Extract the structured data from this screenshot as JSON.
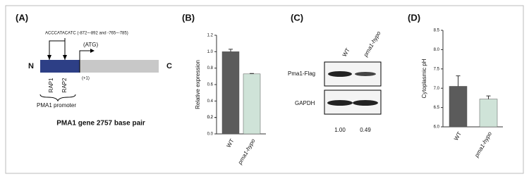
{
  "diagram": {
    "label": "(A)",
    "sequence": "ACCCATACATC (-872~-892 and -765~-785)",
    "start": "(ATG)",
    "n_term": "N",
    "c_term": "C",
    "plus_one": "(+1)",
    "sites": [
      "RAP1",
      "RAP2"
    ],
    "promoter": "PMA1 promoter",
    "caption": "PMA1 gene 2757 base pair"
  },
  "blot": {
    "label": "(C)",
    "lanes": [
      "WT",
      "pma1-hypo"
    ],
    "rows": [
      "Pma1-Flag",
      "GAPDH"
    ],
    "quantities": [
      "1.00",
      "0.49"
    ]
  },
  "chart_data": [
    {
      "type": "bar",
      "label": "(B)",
      "y_label": "Relative expression",
      "categories": [
        "WT",
        "pma1-hypo"
      ],
      "values": [
        1.0,
        0.73
      ],
      "errors": [
        0.03,
        0.005
      ],
      "colors": [
        "#5b5b5b",
        "#cfe3d8"
      ],
      "ylim": [
        0,
        1.2
      ],
      "yticks": [
        {
          "value": 0,
          "label": "0.0"
        },
        0.2,
        0.4,
        0.6,
        0.8,
        {
          "value": 1,
          "label": "1.0"
        },
        0.2,
        1.2
      ]
    },
    {
      "type": "bar",
      "label": "(D)",
      "y_label": "Cytoplasmic pH",
      "categories": [
        "WT",
        "pma1-hypo"
      ],
      "values": [
        7.05,
        6.72
      ],
      "errors": [
        0.27,
        0.08
      ],
      "colors": [
        "#5b5b5b",
        "#cfe3d8"
      ],
      "ylim": [
        6,
        8.5
      ],
      "yticks": [
        {
          "value": 6,
          "label": "6.0"
        },
        6.5,
        {
          "value": 7,
          "label": "7.0"
        },
        7.5,
        {
          "value": 8,
          "label": "8.0"
        },
        8.5
      ]
    }
  ]
}
